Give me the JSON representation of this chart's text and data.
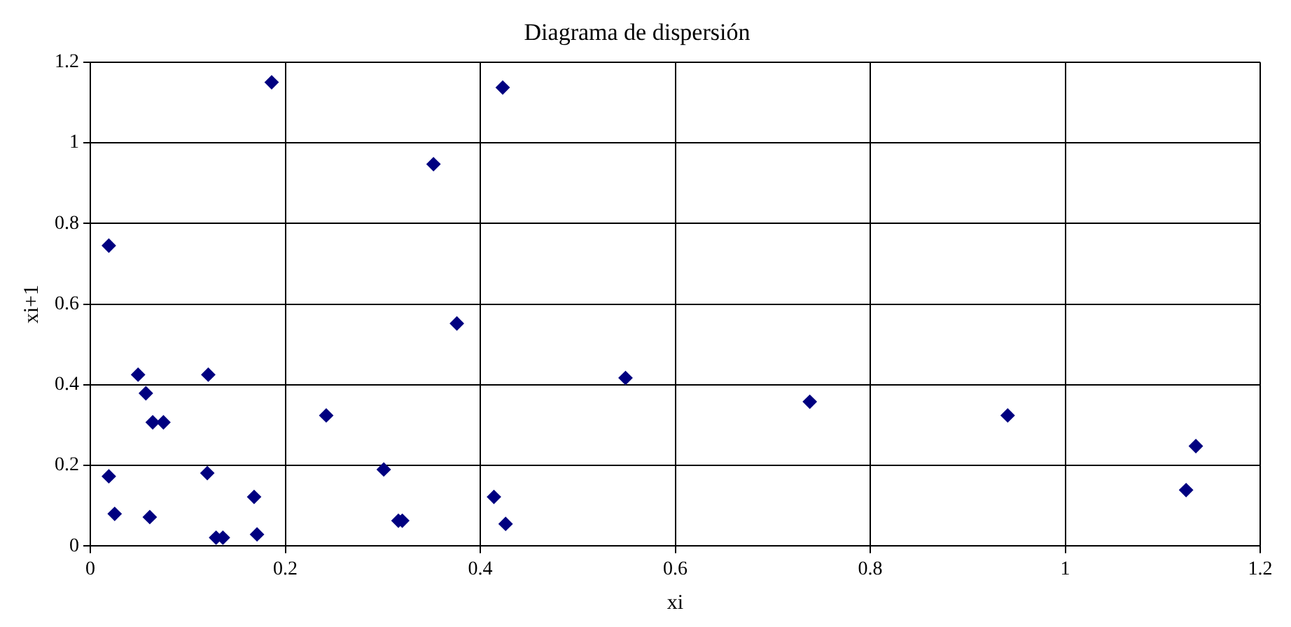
{
  "chart_data": {
    "type": "scatter",
    "title": "Diagrama de dispersión",
    "xlabel": "xi",
    "ylabel": "xi+1",
    "series": [
      {
        "color": "#000080",
        "x": [
          0.019,
          0.186,
          0.423,
          0.352,
          0.376,
          0.549,
          0.738,
          0.941,
          1.134,
          1.124,
          0.242,
          0.301,
          0.316,
          0.32,
          0.414,
          0.426,
          0.121,
          0.12,
          0.049,
          0.057,
          0.064,
          0.075,
          0.019,
          0.025,
          0.061,
          0.168,
          0.129,
          0.136,
          0.171
        ],
        "values": [
          0.745,
          1.15,
          1.137,
          0.947,
          0.552,
          0.417,
          0.358,
          0.324,
          0.248,
          0.139,
          0.324,
          0.19,
          0.063,
          0.063,
          0.122,
          0.055,
          0.425,
          0.181,
          0.425,
          0.379,
          0.307,
          0.307,
          0.173,
          0.08,
          0.072,
          0.122,
          0.021,
          0.021,
          0.029
        ]
      }
    ],
    "xlim": [
      0,
      1.2
    ],
    "ylim": [
      0,
      1.2
    ],
    "xticks": [
      0,
      {
        "value": 0.2,
        "label": "0.2"
      },
      {
        "value": 0.4,
        "label": "0.4"
      },
      {
        "value": 0.6,
        "label": "0.6"
      },
      {
        "value": 0.8,
        "label": "0.8"
      },
      1,
      {
        "value": 1.2,
        "label": "1.2"
      }
    ],
    "yticks": [
      0,
      {
        "value": 0.2,
        "label": "0.2"
      },
      {
        "value": 0.4,
        "label": "0.4"
      },
      {
        "value": 0.6,
        "label": "0.6"
      },
      {
        "value": 0.8,
        "label": "0.8"
      },
      1,
      {
        "value": 1.2,
        "label": "1.2"
      }
    ],
    "grid": true,
    "marker": "diamond",
    "legend": false
  }
}
